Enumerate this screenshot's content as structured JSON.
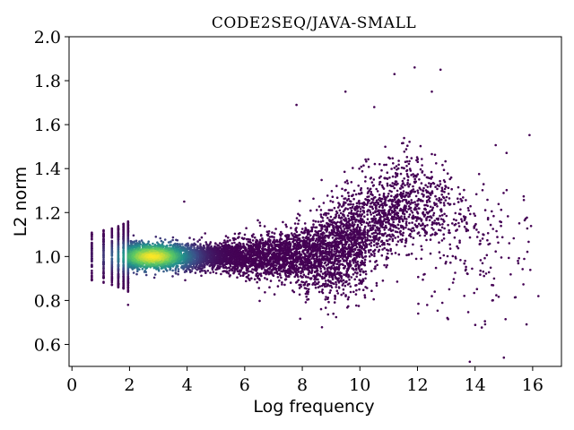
{
  "chart_data": {
    "type": "scatter",
    "title": "CODE2SEQ/JAVA-SMALL",
    "xlabel": "Log frequency",
    "ylabel": "L2 norm",
    "xlim": [
      -0.1,
      17.0
    ],
    "ylim": [
      0.5,
      2.0
    ],
    "xticks": [
      0,
      2,
      4,
      6,
      8,
      10,
      12,
      14,
      16
    ],
    "yticks": [
      0.6,
      0.8,
      1.0,
      1.2,
      1.4,
      1.6,
      1.8,
      2.0
    ],
    "colormap": "viridis",
    "colors": {
      "low_density": "#440154",
      "mid_density": "#21918c",
      "high_density": "#fde725"
    },
    "grid": false,
    "density_peak": {
      "x": 2.8,
      "y": 1.0
    },
    "discrete_columns_x": [
      0.69,
      1.1,
      1.39,
      1.61,
      1.79,
      1.95
    ],
    "notable_outliers": [
      [
        11.9,
        1.86
      ],
      [
        12.8,
        1.85
      ],
      [
        11.2,
        1.83
      ],
      [
        9.5,
        1.75
      ],
      [
        12.5,
        1.75
      ],
      [
        7.8,
        1.69
      ],
      [
        10.5,
        1.68
      ],
      [
        3.9,
        1.25
      ],
      [
        15.0,
        0.54
      ],
      [
        16.2,
        0.82
      ],
      [
        14.6,
        0.8
      ],
      [
        1.95,
        0.78
      ],
      [
        12.6,
        0.84
      ]
    ]
  }
}
